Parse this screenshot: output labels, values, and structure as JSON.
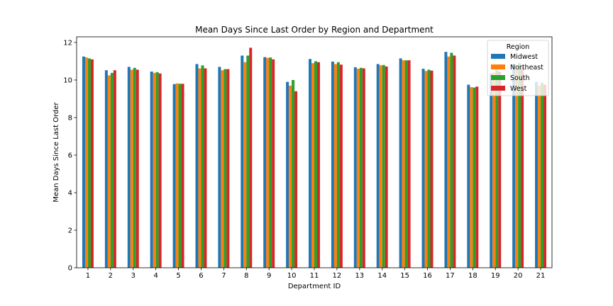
{
  "chart_data": {
    "type": "bar",
    "title": "Mean Days Since Last Order by Region and Department",
    "xlabel": "Department ID",
    "ylabel": "Mean Days Since Last Order",
    "ylim": [
      0,
      12.3
    ],
    "yticks": [
      0,
      2,
      4,
      6,
      8,
      10,
      12
    ],
    "grid": false,
    "legend": {
      "title": "Region",
      "placement": "top-right"
    },
    "categories": [
      "1",
      "2",
      "3",
      "4",
      "5",
      "6",
      "7",
      "8",
      "9",
      "10",
      "11",
      "12",
      "13",
      "14",
      "15",
      "16",
      "17",
      "18",
      "19",
      "20",
      "21"
    ],
    "series": [
      {
        "name": "Midwest",
        "color": "#1f77b4",
        "values": [
          11.25,
          10.52,
          10.7,
          10.45,
          9.78,
          10.85,
          10.7,
          11.3,
          11.22,
          9.9,
          11.12,
          10.98,
          10.68,
          10.85,
          11.15,
          10.6,
          11.5,
          9.75,
          10.35,
          10.85,
          9.9
        ]
      },
      {
        "name": "Northeast",
        "color": "#ff7f0e",
        "values": [
          11.2,
          10.25,
          10.55,
          10.38,
          9.82,
          10.62,
          10.52,
          10.95,
          11.18,
          9.7,
          10.9,
          10.85,
          10.6,
          10.78,
          11.05,
          10.48,
          11.25,
          9.62,
          10.4,
          10.55,
          9.7
        ]
      },
      {
        "name": "South",
        "color": "#2ca02c",
        "values": [
          11.15,
          10.38,
          10.65,
          10.42,
          9.8,
          10.78,
          10.58,
          11.3,
          11.2,
          10.0,
          11.0,
          10.95,
          10.65,
          10.8,
          11.05,
          10.55,
          11.45,
          9.6,
          10.55,
          10.9,
          9.85
        ]
      },
      {
        "name": "West",
        "color": "#d62728",
        "values": [
          11.1,
          10.52,
          10.55,
          10.35,
          9.8,
          10.62,
          10.58,
          11.72,
          11.1,
          9.4,
          10.95,
          10.82,
          10.62,
          10.72,
          11.05,
          10.5,
          11.3,
          9.65,
          10.45,
          10.7,
          9.75
        ]
      }
    ]
  }
}
